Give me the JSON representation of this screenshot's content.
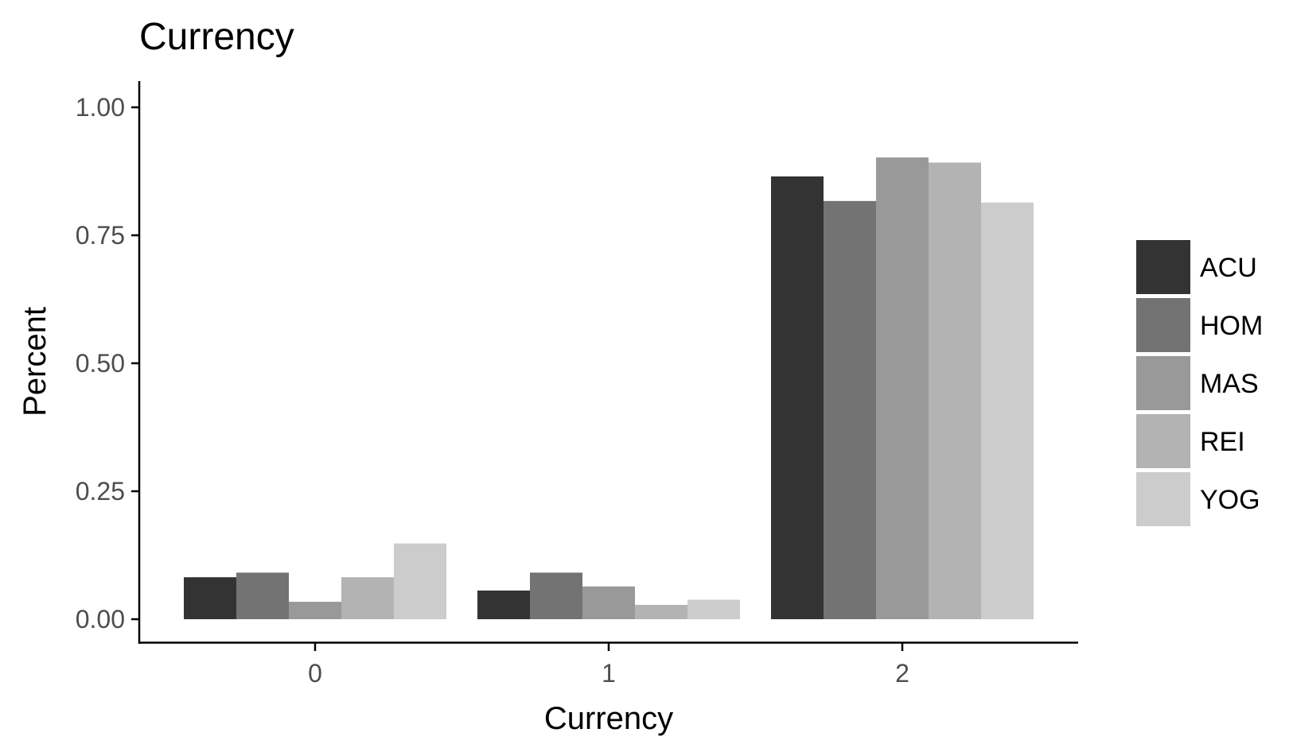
{
  "chart_data": {
    "type": "bar",
    "title": "Currency",
    "xlabel": "Currency",
    "ylabel": "Percent",
    "categories": [
      "0",
      "1",
      "2"
    ],
    "ylim": [
      0,
      1.04
    ],
    "yticks": [
      "0.00",
      "0.25",
      "0.50",
      "0.75",
      "1.00"
    ],
    "grid": false,
    "legend_position": "right",
    "series": [
      {
        "name": "ACU",
        "color": "#333333",
        "values": [
          0.082,
          0.056,
          0.865
        ]
      },
      {
        "name": "HOM",
        "color": "#737373",
        "values": [
          0.091,
          0.091,
          0.817
        ]
      },
      {
        "name": "MAS",
        "color": "#999999",
        "values": [
          0.034,
          0.064,
          0.902
        ]
      },
      {
        "name": "REI",
        "color": "#b3b3b3",
        "values": [
          0.082,
          0.028,
          0.892
        ]
      },
      {
        "name": "YOG",
        "color": "#cccccc",
        "values": [
          0.148,
          0.038,
          0.814
        ]
      }
    ]
  }
}
